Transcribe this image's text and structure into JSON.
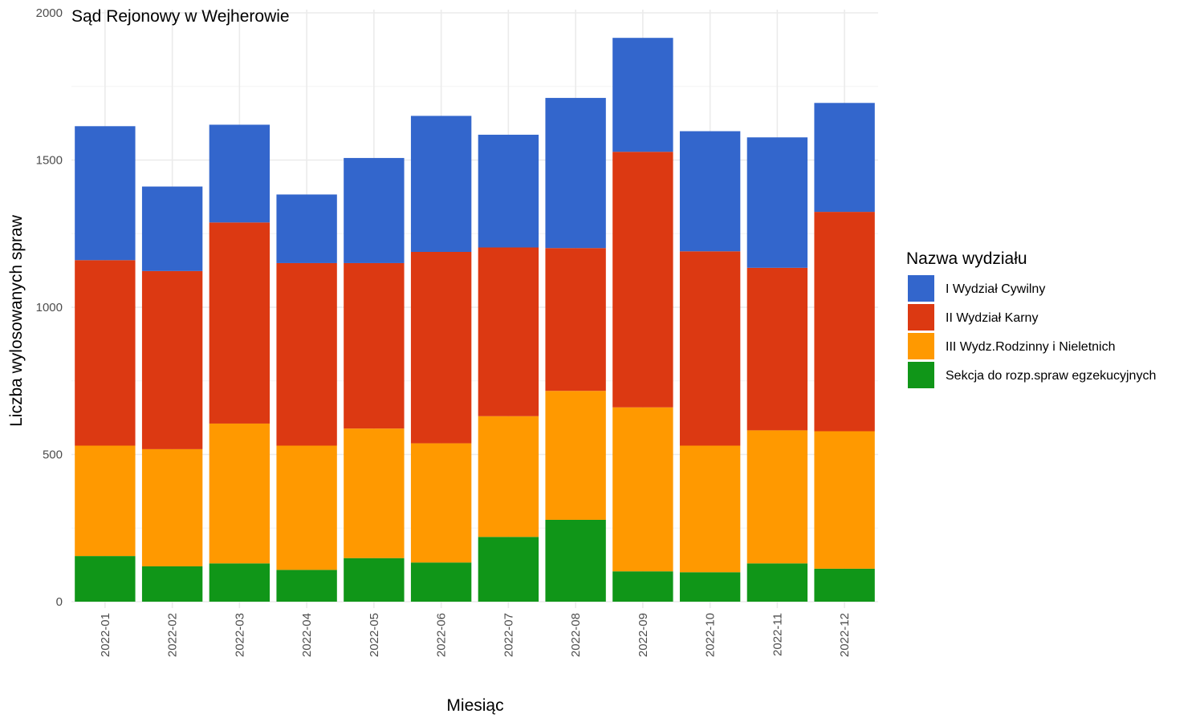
{
  "chart_data": {
    "type": "bar",
    "stacked": true,
    "title": "Sąd Rejonowy w Wejherowie",
    "xlabel": "Miesiąc",
    "ylabel": "Liczba wylosowanych spraw",
    "ylim": [
      0,
      2000
    ],
    "yticks": [
      0,
      500,
      1000,
      1500,
      2000
    ],
    "grid": true,
    "legend_title": "Nazwa wydziału",
    "legend_position": "right",
    "categories": [
      "2022-01",
      "2022-02",
      "2022-03",
      "2022-04",
      "2022-05",
      "2022-06",
      "2022-07",
      "2022-08",
      "2022-09",
      "2022-10",
      "2022-11",
      "2022-12"
    ],
    "series": [
      {
        "name": "Sekcja do rozp.spraw egzekucyjnych",
        "color": "#109618",
        "values": [
          155,
          120,
          130,
          108,
          148,
          133,
          220,
          278,
          103,
          100,
          130,
          112
        ]
      },
      {
        "name": "III Wydz.Rodzinny i Nieletnich",
        "color": "#FF9900",
        "values": [
          375,
          398,
          475,
          422,
          440,
          405,
          410,
          438,
          557,
          430,
          452,
          467
        ]
      },
      {
        "name": "II Wydział Karny",
        "color": "#DC3912",
        "values": [
          630,
          605,
          683,
          620,
          562,
          650,
          573,
          485,
          868,
          660,
          552,
          745
        ]
      },
      {
        "name": "I Wydział Cywilny",
        "color": "#3366CC",
        "values": [
          455,
          287,
          332,
          233,
          357,
          462,
          383,
          510,
          387,
          408,
          443,
          370
        ]
      }
    ],
    "legend_order": [
      "I Wydział Cywilny",
      "II Wydział Karny",
      "III Wydz.Rodzinny i Nieletnich",
      "Sekcja do rozp.spraw egzekucyjnych"
    ]
  }
}
